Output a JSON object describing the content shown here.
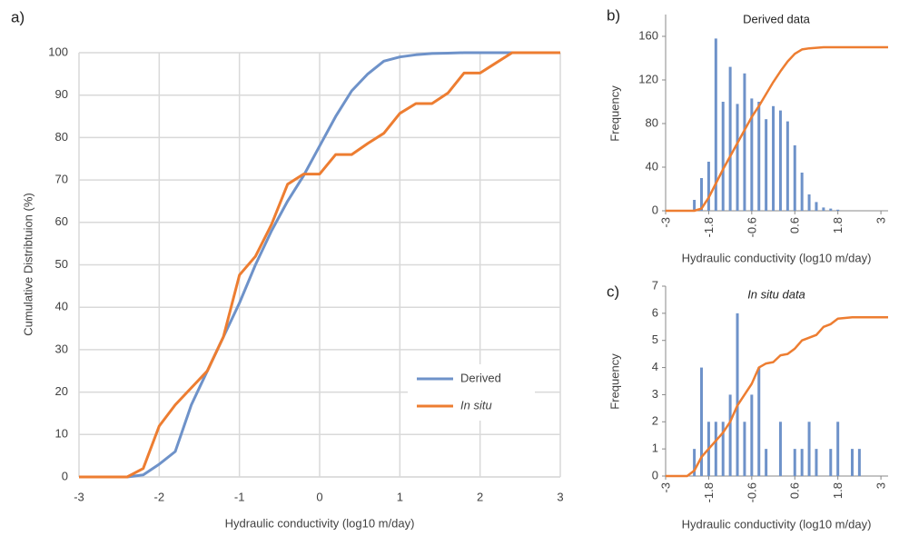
{
  "chart_data": [
    {
      "type": "line",
      "panel": "a)",
      "xlabel": "Hydraulic conductivity (log10 m/day)",
      "ylabel": "Cumulative Distribtuion (%)",
      "x": [
        -3,
        -2.8,
        -2.6,
        -2.4,
        -2.2,
        -2,
        -1.8,
        -1.6,
        -1.4,
        -1.2,
        -1,
        -0.8,
        -0.6,
        -0.4,
        -0.2,
        0,
        0.2,
        0.4,
        0.6,
        0.8,
        1,
        1.2,
        1.4,
        1.6,
        1.8,
        2,
        2.2,
        2.4,
        2.6,
        2.8,
        3
      ],
      "series": [
        {
          "name": "Derived",
          "color": "#6e92c9",
          "values": [
            0,
            0,
            0,
            0,
            0.5,
            3,
            6,
            17,
            25,
            33,
            41,
            50,
            58,
            65,
            71,
            78,
            85,
            91,
            95,
            98,
            99,
            99.5,
            99.8,
            99.9,
            100,
            100,
            100,
            100,
            100,
            100,
            100
          ]
        },
        {
          "name": "In situ",
          "color": "#ed7d31",
          "values": [
            0,
            0,
            0,
            0,
            2,
            12,
            17,
            21,
            25,
            33,
            47.6,
            52,
            59.5,
            69,
            71.4,
            71.4,
            76,
            76,
            78.6,
            81,
            85.7,
            88,
            88,
            90.5,
            95.2,
            95.2,
            97.6,
            100,
            100,
            100,
            100
          ]
        }
      ],
      "xlim": [
        -3,
        3
      ],
      "xticks": [
        -3,
        -2,
        -1,
        0,
        1,
        2,
        3
      ],
      "ylim": [
        0,
        100
      ],
      "yticks": [
        0,
        10,
        20,
        30,
        40,
        50,
        60,
        70,
        80,
        90,
        100
      ],
      "grid": true,
      "legend": "lower right"
    },
    {
      "type": "bar",
      "panel": "b)",
      "title": "Derived data",
      "xlabel": "Hydraulic conductivity (log10 m/day)",
      "ylabel": "Frequency",
      "bars": {
        "color": "#6e92c9",
        "x": [
          -2.2,
          -2,
          -1.8,
          -1.6,
          -1.4,
          -1.2,
          -1,
          -0.8,
          -0.6,
          -0.4,
          -0.2,
          0,
          0.2,
          0.4,
          0.6,
          0.8,
          1,
          1.2,
          1.4,
          1.6,
          1.8
        ],
        "values": [
          10,
          30,
          45,
          158,
          100,
          132,
          98,
          126,
          103,
          100,
          84,
          96,
          92,
          82,
          60,
          35,
          15,
          8,
          3,
          2,
          1
        ]
      },
      "line": {
        "color": "#ed7d31",
        "x": [
          -3,
          -2.2,
          -2,
          -1.8,
          -1.6,
          -1.4,
          -1.2,
          -1,
          -0.8,
          -0.6,
          -0.4,
          -0.2,
          0,
          0.2,
          0.4,
          0.6,
          0.8,
          1,
          1.4,
          3.2
        ],
        "values": [
          0,
          0,
          2,
          12,
          25,
          38,
          50,
          62,
          74,
          86,
          96,
          107,
          118,
          128,
          137,
          144,
          148,
          149,
          150,
          150
        ]
      },
      "xlim": [
        -3,
        3.2
      ],
      "xticks": [
        -3,
        -1.8,
        -0.6,
        0.6,
        1.8,
        3
      ],
      "ylim": [
        0,
        180
      ],
      "yticks": [
        0,
        40,
        80,
        120,
        160
      ],
      "grid": false
    },
    {
      "type": "bar",
      "panel": "c)",
      "title": "In situ data",
      "xlabel": "Hydraulic conductivity (log10 m/day)",
      "ylabel": "Frequency",
      "bars": {
        "color": "#6e92c9",
        "x": [
          -2.2,
          -2,
          -1.8,
          -1.6,
          -1.4,
          -1.2,
          -1,
          -0.8,
          -0.6,
          -0.4,
          -0.2,
          0.2,
          0.6,
          0.8,
          1,
          1.2,
          1.6,
          1.8,
          2.2,
          2.4
        ],
        "values": [
          1,
          4,
          2,
          2,
          2,
          3,
          6,
          2,
          3,
          4,
          1,
          2,
          1,
          1,
          2,
          1,
          1,
          2,
          1,
          1
        ]
      },
      "line": {
        "color": "#ed7d31",
        "x": [
          -3,
          -2.4,
          -2.2,
          -2,
          -1.8,
          -1.6,
          -1.4,
          -1.2,
          -1,
          -0.8,
          -0.6,
          -0.4,
          -0.2,
          0,
          0.2,
          0.4,
          0.6,
          0.8,
          1,
          1.2,
          1.4,
          1.6,
          1.8,
          2.2,
          3.2
        ],
        "values": [
          0,
          0,
          0.2,
          0.7,
          1,
          1.3,
          1.6,
          2,
          2.6,
          3,
          3.4,
          4,
          4.15,
          4.2,
          4.45,
          4.5,
          4.7,
          5,
          5.1,
          5.2,
          5.5,
          5.6,
          5.8,
          5.85,
          5.85
        ]
      },
      "xlim": [
        -3,
        3.2
      ],
      "xticks": [
        -3,
        -1.8,
        -0.6,
        0.6,
        1.8,
        3
      ],
      "ylim": [
        0,
        7
      ],
      "yticks": [
        0,
        1,
        2,
        3,
        4,
        5,
        6,
        7
      ],
      "grid": false
    }
  ]
}
